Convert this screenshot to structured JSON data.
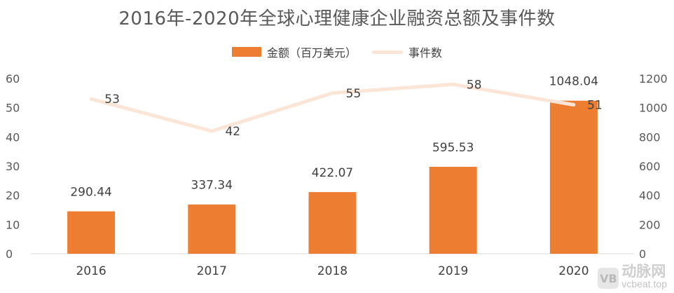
{
  "chart_data": {
    "type": "bar",
    "title": "2016年-2020年全球心理健康企业融资总额及事件数",
    "categories": [
      "2016",
      "2017",
      "2018",
      "2019",
      "2020"
    ],
    "series": [
      {
        "name": "金额（百万美元）",
        "type": "bar",
        "axis": "right",
        "values": [
          290.44,
          337.34,
          422.07,
          595.53,
          1048.04
        ],
        "labels": [
          "290.44",
          "337.34",
          "422.07",
          "595.53",
          "1048.04"
        ],
        "color": "#ED7D31"
      },
      {
        "name": "事件数",
        "type": "line",
        "axis": "left",
        "values": [
          53,
          42,
          55,
          58,
          51
        ],
        "labels": [
          "53",
          "42",
          "55",
          "58",
          "51"
        ],
        "color": "#FBE5D6"
      }
    ],
    "y_left": {
      "ylim": [
        0,
        60
      ],
      "ticks": [
        "0",
        "10",
        "20",
        "30",
        "40",
        "50",
        "60"
      ]
    },
    "y_right": {
      "ylim": [
        0,
        1200
      ],
      "ticks": [
        "0",
        "200",
        "400",
        "600",
        "800",
        "1000",
        "1200"
      ]
    },
    "legend_position": "top-center",
    "grid": false
  },
  "watermark": {
    "logo": "VB",
    "text_cn": "动脉网",
    "text_en": "vcbeat.top"
  }
}
